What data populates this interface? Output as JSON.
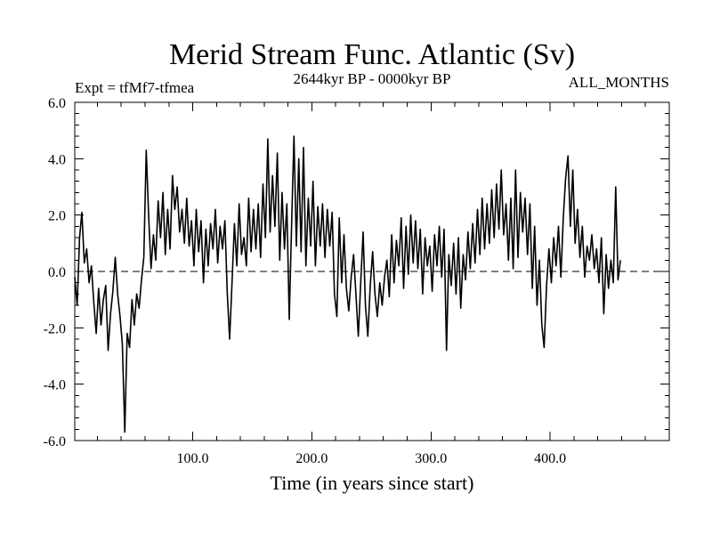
{
  "chart_data": {
    "type": "line",
    "title": "Merid Stream Func. Atlantic (Sv)",
    "subtitle_left": "Expt = tfMf7-tfmea",
    "subtitle_center": "2644kyr BP - 0000kyr BP",
    "subtitle_right": "ALL_MONTHS",
    "xlabel": "Time (in years since start)",
    "ylabel": "",
    "xlim": [
      1,
      500
    ],
    "ylim": [
      -6,
      6
    ],
    "x_ticks": [
      100,
      200,
      300,
      400
    ],
    "x_tick_labels": [
      "100.0",
      "200.0",
      "300.0",
      "400.0"
    ],
    "y_ticks": [
      -6,
      -4,
      -2,
      0,
      2,
      4,
      6
    ],
    "y_tick_labels": [
      "-6.0",
      "-4.0",
      "-2.0",
      "0.0",
      "2.0",
      "4.0",
      "6.0"
    ],
    "reference_line": {
      "y": 0,
      "style": "dashed"
    },
    "series": [
      {
        "name": "Merid Stream Func. Atlantic",
        "x_start": 1,
        "x_step": 2,
        "values": [
          -0.2,
          -1.2,
          1.2,
          2.1,
          0.3,
          0.8,
          -0.4,
          0.2,
          -1.1,
          -2.2,
          -0.6,
          -1.9,
          -1.0,
          -0.5,
          -2.8,
          -1.5,
          -0.7,
          0.5,
          -0.8,
          -1.6,
          -2.6,
          -5.7,
          -2.2,
          -2.7,
          -1.0,
          -1.9,
          -0.8,
          -1.3,
          -0.3,
          0.5,
          4.3,
          2.0,
          0.1,
          1.3,
          0.4,
          2.5,
          1.2,
          2.8,
          0.6,
          2.2,
          0.8,
          3.4,
          2.2,
          3.0,
          1.4,
          2.2,
          1.0,
          2.6,
          0.9,
          1.8,
          0.2,
          2.2,
          0.7,
          1.8,
          -0.4,
          1.5,
          0.2,
          1.7,
          0.8,
          2.2,
          0.3,
          1.6,
          0.8,
          1.8,
          -0.8,
          -2.4,
          -0.4,
          1.7,
          0.2,
          2.4,
          0.6,
          1.2,
          0.2,
          2.6,
          0.7,
          2.2,
          0.8,
          2.4,
          0.5,
          3.1,
          1.2,
          4.7,
          1.4,
          3.4,
          1.6,
          4.2,
          0.4,
          2.8,
          0.8,
          2.4,
          -1.7,
          1.6,
          4.8,
          0.9,
          4.0,
          0.7,
          4.4,
          0.2,
          2.6,
          0.9,
          3.2,
          0.2,
          2.3,
          0.9,
          2.4,
          0.5,
          2.2,
          0.9,
          2.1,
          -0.8,
          -1.6,
          1.9,
          -0.4,
          1.3,
          -0.6,
          -1.4,
          -0.2,
          0.6,
          -0.8,
          -2.3,
          -0.4,
          1.4,
          -1.2,
          -2.3,
          -0.5,
          0.7,
          -0.8,
          -1.6,
          -0.4,
          -1.2,
          -0.2,
          0.4,
          -0.9,
          1.3,
          -0.4,
          1.1,
          0.2,
          1.9,
          -0.6,
          1.6,
          -0.1,
          2.0,
          0.3,
          1.8,
          0.1,
          1.5,
          -0.8,
          1.2,
          0.2,
          0.9,
          -0.7,
          1.3,
          0.2,
          1.6,
          -0.2,
          1.5,
          -2.8,
          0.6,
          -0.5,
          1.0,
          -0.8,
          1.2,
          -1.3,
          0.6,
          -0.3,
          1.4,
          0.1,
          1.7,
          0.3,
          2.2,
          0.6,
          2.6,
          0.8,
          2.4,
          1.0,
          2.9,
          1.2,
          3.1,
          1.5,
          3.6,
          1.3,
          2.4,
          0.4,
          2.6,
          0.1,
          3.6,
          0.5,
          2.8,
          1.4,
          2.6,
          0.6,
          2.4,
          -0.6,
          1.6,
          -1.2,
          0.4,
          -1.9,
          -2.7,
          -0.5,
          0.8,
          -0.4,
          1.2,
          0.2,
          1.6,
          -0.2,
          1.9,
          3.3,
          4.1,
          1.6,
          3.6,
          1.0,
          2.2,
          0.5,
          1.6,
          -0.2,
          0.9,
          0.4,
          1.3,
          0.1,
          0.8,
          -0.4,
          1.2,
          -1.5,
          0.6,
          -0.6,
          0.4,
          -0.4,
          3.0,
          -0.3,
          0.4
        ]
      }
    ]
  }
}
